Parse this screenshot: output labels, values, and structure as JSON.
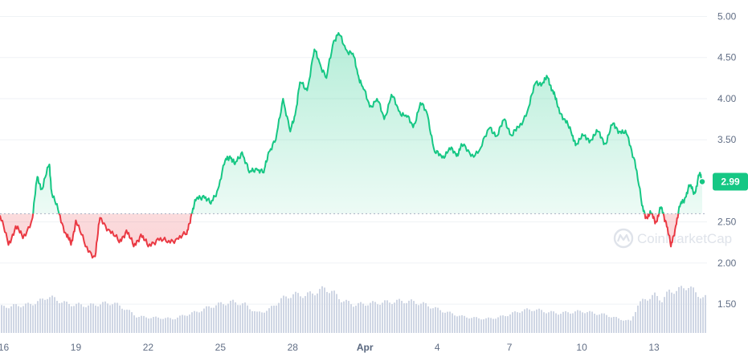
{
  "chart_data": {
    "type": "line",
    "reference_price": 2.6,
    "current_price": 2.99,
    "current_price_label": "2.99",
    "ylim": [
      1.15,
      5.2
    ],
    "y_ticks": [
      "5.00",
      "4.50",
      "4.00",
      "3.50",
      "2.50",
      "2.00",
      "1.50"
    ],
    "y_tick_values": [
      5.0,
      4.5,
      4.0,
      3.5,
      2.5,
      2.0,
      1.5
    ],
    "x_ticks": [
      "16",
      "19",
      "22",
      "25",
      "28",
      "Apr",
      "4",
      "7",
      "10",
      "13"
    ],
    "x_tick_values": [
      0.0,
      3.0,
      6.0,
      9.0,
      12.0,
      15.0,
      18.0,
      21.0,
      24.0,
      27.0
    ],
    "xlim": [
      -0.15,
      29.2
    ],
    "series": [
      {
        "x": [
          -0.15,
          0.2,
          0.5,
          0.8,
          1.2,
          1.4,
          1.6,
          1.9,
          2.0,
          2.3,
          2.6,
          2.8,
          3.0,
          3.4,
          3.8,
          4.0,
          4.4,
          4.8,
          5.1,
          5.4,
          5.7,
          6.0,
          6.4,
          6.8,
          7.2,
          7.6,
          7.8,
          8.0,
          8.3,
          8.6,
          8.9,
          9.2,
          9.4,
          9.6,
          9.9,
          10.2,
          10.5,
          10.8,
          11.0,
          11.3,
          11.6,
          11.9,
          12.1,
          12.3,
          12.6,
          12.9,
          13.1,
          13.4,
          13.7,
          13.9,
          14.2,
          14.5,
          14.7,
          14.9,
          15.2,
          15.5,
          15.8,
          16.1,
          16.4,
          16.7,
          17.0,
          17.3,
          17.6,
          17.9,
          18.2,
          18.5,
          18.8,
          19.0,
          19.4,
          19.8,
          20.2,
          20.5,
          20.8,
          21.1,
          21.4,
          21.8,
          22.1,
          22.4,
          22.6,
          22.8,
          23.0,
          23.3,
          23.6,
          23.8,
          24.1,
          24.4,
          24.7,
          25.0,
          25.3,
          25.6,
          25.9,
          26.2,
          26.5,
          26.7,
          26.9,
          27.1,
          27.3,
          27.5,
          27.7,
          27.9,
          28.1,
          28.3,
          28.5,
          28.7,
          28.9,
          29.0
        ],
        "values": [
          2.58,
          2.22,
          2.45,
          2.3,
          2.55,
          3.05,
          2.9,
          3.2,
          2.85,
          2.6,
          2.35,
          2.22,
          2.52,
          2.2,
          2.08,
          2.55,
          2.4,
          2.25,
          2.4,
          2.2,
          2.35,
          2.2,
          2.3,
          2.25,
          2.3,
          2.35,
          2.6,
          2.78,
          2.82,
          2.72,
          2.9,
          3.25,
          3.3,
          3.2,
          3.35,
          3.1,
          3.15,
          3.1,
          3.35,
          3.5,
          4.0,
          3.6,
          3.8,
          4.2,
          4.1,
          4.6,
          4.45,
          4.25,
          4.7,
          4.8,
          4.6,
          4.55,
          4.3,
          4.15,
          3.9,
          4.0,
          3.75,
          4.05,
          3.85,
          3.8,
          3.65,
          3.95,
          3.8,
          3.35,
          3.28,
          3.4,
          3.3,
          3.45,
          3.3,
          3.4,
          3.65,
          3.55,
          3.75,
          3.55,
          3.65,
          3.9,
          4.2,
          4.2,
          4.25,
          4.1,
          3.9,
          3.75,
          3.55,
          3.45,
          3.55,
          3.5,
          3.6,
          3.45,
          3.7,
          3.6,
          3.55,
          3.25,
          2.7,
          2.55,
          2.6,
          2.5,
          2.68,
          2.5,
          2.2,
          2.45,
          2.72,
          2.8,
          2.95,
          2.85,
          3.1,
          2.99
        ]
      }
    ],
    "volume": {
      "ylim": [
        0,
        1
      ],
      "x": [
        -0.15,
        0.5,
        1.0,
        1.5,
        1.8,
        2.2,
        2.6,
        3.0,
        3.5,
        4.0,
        4.5,
        5.0,
        5.5,
        6.0,
        6.5,
        7.0,
        7.5,
        8.0,
        8.5,
        9.0,
        9.5,
        10.0,
        10.5,
        11.0,
        11.5,
        12.0,
        12.5,
        13.0,
        13.3,
        13.6,
        14.0,
        14.5,
        15.0,
        15.5,
        16.0,
        16.5,
        17.0,
        17.5,
        18.0,
        18.5,
        19.0,
        19.5,
        20.0,
        20.5,
        21.0,
        21.5,
        22.0,
        22.5,
        23.0,
        23.5,
        24.0,
        24.5,
        25.0,
        25.5,
        26.0,
        26.3,
        26.6,
        27.0,
        27.3,
        27.6,
        28.0,
        28.4,
        28.7,
        29.0
      ],
      "values": [
        0.55,
        0.58,
        0.6,
        0.68,
        0.78,
        0.7,
        0.62,
        0.6,
        0.58,
        0.62,
        0.64,
        0.52,
        0.35,
        0.33,
        0.32,
        0.3,
        0.38,
        0.45,
        0.55,
        0.62,
        0.66,
        0.6,
        0.42,
        0.5,
        0.72,
        0.82,
        0.8,
        0.88,
        0.95,
        0.88,
        0.7,
        0.6,
        0.62,
        0.64,
        0.66,
        0.68,
        0.66,
        0.6,
        0.5,
        0.42,
        0.35,
        0.32,
        0.3,
        0.33,
        0.4,
        0.48,
        0.5,
        0.45,
        0.42,
        0.44,
        0.46,
        0.42,
        0.38,
        0.3,
        0.25,
        0.6,
        0.72,
        0.8,
        0.7,
        0.88,
        0.92,
        1.0,
        0.85,
        0.75
      ]
    }
  },
  "watermark": {
    "text": "CoinMarketCap",
    "icon": "coinmarketcap-logo-icon"
  },
  "colors": {
    "up": "#16c784",
    "down": "#ea3943",
    "grid": "#eff2f5",
    "reference_line": "#a6b0c3",
    "volume": "#cfd6e4"
  }
}
